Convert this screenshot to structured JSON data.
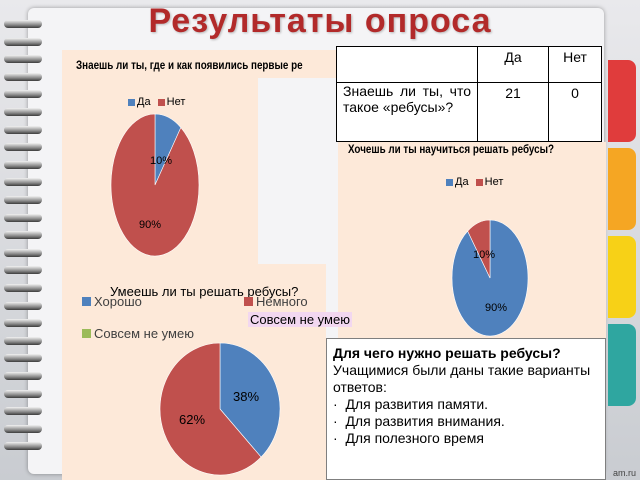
{
  "slide": {
    "title": "Результаты опроса",
    "watermark": "am.ru"
  },
  "colors": {
    "blue": "#4f81bd",
    "red": "#c0504d",
    "green": "#9bbb59",
    "title_red": "#b22a2a",
    "panel": "#fde9d9",
    "tab_red": "#e03c3c",
    "tab_orange": "#f5a623",
    "tab_yellow": "#f7d117",
    "tab_teal": "#2fa6a0"
  },
  "chart1": {
    "title": "Знаешь ли ты, где и как появились первые ре",
    "legend": [
      "Да",
      "Нет"
    ]
  },
  "chart2": {
    "title": "Хочешь ли ты научиться решать ребусы?",
    "legend": [
      "Да",
      "Нет"
    ]
  },
  "chart3": {
    "title": "Умеешь ли ты решать ребусы?",
    "legend": [
      "Хорошо",
      "Немного",
      "Совсем не умею"
    ],
    "highlight_label": "Совсем не умею"
  },
  "table": {
    "header_yes": "Да",
    "header_no": "Нет",
    "row_question": "Знаешь ли ты, что такое «ребусы»?",
    "yes_value": "21",
    "no_value": "0"
  },
  "textbox": {
    "title": "Для чего нужно решать ребусы?",
    "intro": "Учащимися были даны такие варианты ответов:",
    "items": [
      "Для развития памяти.",
      "Для развития внимания.",
      "Для полезного время"
    ]
  },
  "chart_data": [
    {
      "type": "pie",
      "title": "Знаешь ли ты, где и как появились первые ре",
      "categories": [
        "Да",
        "Нет"
      ],
      "values": [
        10,
        90
      ],
      "labels": [
        "10%",
        "90%"
      ],
      "legend": "top"
    },
    {
      "type": "pie",
      "title": "Хочешь ли ты научиться решать ребусы?",
      "categories": [
        "Да",
        "Нет"
      ],
      "values": [
        90,
        10
      ],
      "labels": [
        "90%",
        "10%"
      ],
      "legend": "top"
    },
    {
      "type": "pie",
      "title": "Умеешь ли ты решать ребусы?",
      "categories": [
        "Хорошо",
        "Немного",
        "Совсем не умею"
      ],
      "values": [
        38,
        62,
        0
      ],
      "labels": [
        "38%",
        "62%"
      ],
      "legend": "top"
    }
  ]
}
